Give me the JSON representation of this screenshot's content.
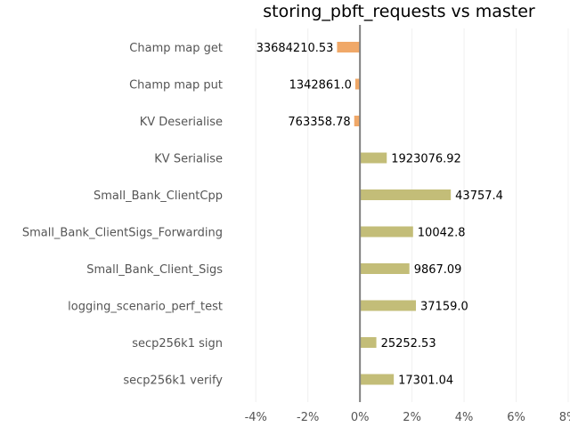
{
  "chart_data": {
    "type": "bar",
    "orientation": "horizontal",
    "title": "storing_pbft_requests vs master",
    "xlabel": "",
    "ylabel": "",
    "xlim": [
      -0.05,
      0.08
    ],
    "x_ticks": [
      -0.04,
      -0.02,
      0,
      0.02,
      0.04,
      0.06,
      0.08
    ],
    "x_tick_labels": [
      "-4%",
      "-2%",
      "0%",
      "2%",
      "4%",
      "6%",
      "8%"
    ],
    "grid": "vertical",
    "legend": "none",
    "categories": [
      "Champ map get",
      "Champ map put",
      "KV Deserialise",
      "KV Serialise",
      "Small_Bank_ClientCpp",
      "Small_Bank_ClientSigs_Forwarding",
      "Small_Bank_Client_Sigs",
      "logging_scenario_perf_test",
      "secp256k1 sign",
      "secp256k1 verify"
    ],
    "values": [
      -0.0088,
      -0.0018,
      -0.0022,
      0.0103,
      0.0349,
      0.0204,
      0.019,
      0.0215,
      0.0063,
      0.013
    ],
    "data_labels": [
      "33684210.53",
      "1342861.0",
      "763358.78",
      "1923076.92",
      "43757.4",
      "10042.8",
      "9867.09",
      "37159.0",
      "25252.53",
      "17301.04"
    ],
    "colors": {
      "negative": "#f0a868",
      "positive": "#c3bd78",
      "axis": "#808080",
      "grid": "#f0f0f0"
    }
  }
}
